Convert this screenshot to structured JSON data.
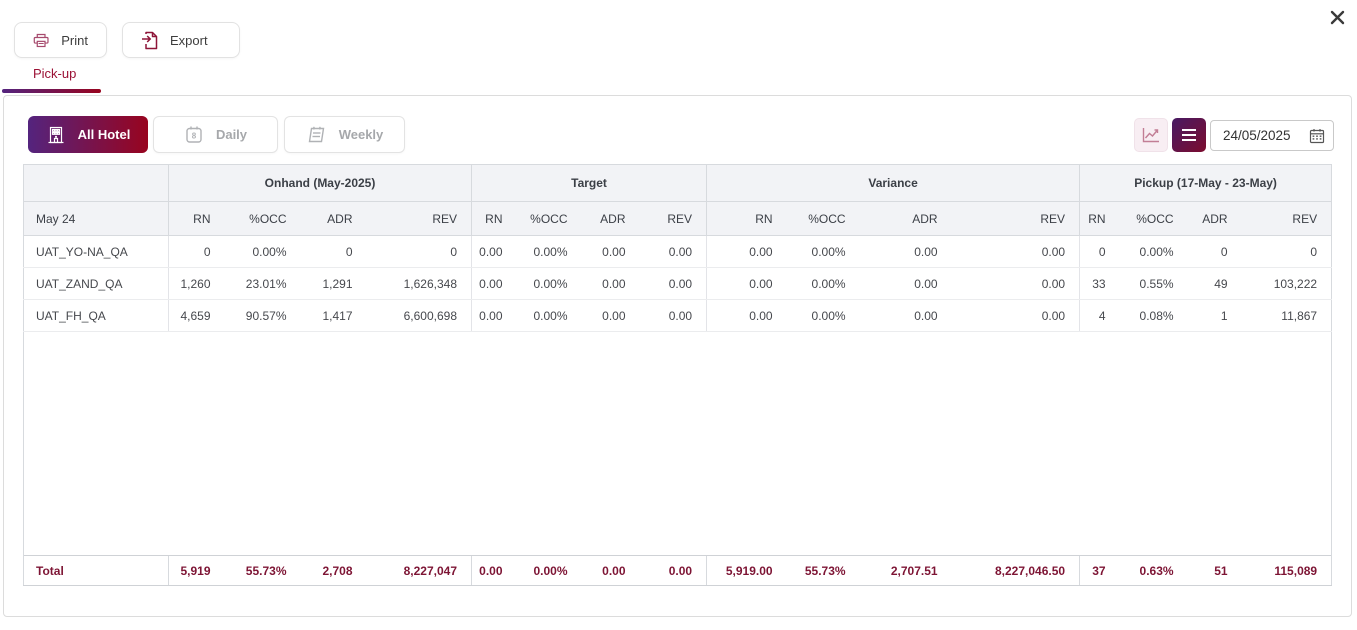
{
  "window": {
    "close_label": "close"
  },
  "header_actions": {
    "print": "Print",
    "export": "Export"
  },
  "tab": {
    "label": "Pick-up"
  },
  "controls": {
    "scope_buttons": [
      {
        "label": "All Hotel",
        "active": true
      },
      {
        "label": "Daily",
        "active": false
      },
      {
        "label": "Weekly",
        "active": false
      }
    ],
    "date": {
      "value": "24/05/2025"
    }
  },
  "table": {
    "first_column_label": "May 24",
    "groups": [
      {
        "label": "",
        "columns": []
      },
      {
        "label": "Onhand (May-2025)",
        "columns": [
          "RN",
          "%OCC",
          "ADR",
          "REV"
        ]
      },
      {
        "label": "Target",
        "columns": [
          "RN",
          "%OCC",
          "ADR",
          "REV"
        ]
      },
      {
        "label": "Variance",
        "columns": [
          "RN",
          "%OCC",
          "ADR",
          "REV"
        ]
      },
      {
        "label": "Pickup (17-May - 23-May)",
        "columns": [
          "RN",
          "%OCC",
          "ADR",
          "REV"
        ]
      }
    ],
    "rows": [
      {
        "name": "UAT_YO-NA_QA",
        "onhand": [
          "0",
          "0.00%",
          "0",
          "0"
        ],
        "target": [
          "0.00",
          "0.00%",
          "0.00",
          "0.00"
        ],
        "variance": [
          "0.00",
          "0.00%",
          "0.00",
          "0.00"
        ],
        "pickup": [
          "0",
          "0.00%",
          "0",
          "0"
        ]
      },
      {
        "name": "UAT_ZAND_QA",
        "onhand": [
          "1,260",
          "23.01%",
          "1,291",
          "1,626,348"
        ],
        "target": [
          "0.00",
          "0.00%",
          "0.00",
          "0.00"
        ],
        "variance": [
          "0.00",
          "0.00%",
          "0.00",
          "0.00"
        ],
        "pickup": [
          "33",
          "0.55%",
          "49",
          "103,222"
        ]
      },
      {
        "name": "UAT_FH_QA",
        "onhand": [
          "4,659",
          "90.57%",
          "1,417",
          "6,600,698"
        ],
        "target": [
          "0.00",
          "0.00%",
          "0.00",
          "0.00"
        ],
        "variance": [
          "0.00",
          "0.00%",
          "0.00",
          "0.00"
        ],
        "pickup": [
          "4",
          "0.08%",
          "1",
          "11,867"
        ]
      }
    ],
    "total": {
      "name": "Total",
      "onhand": [
        "5,919",
        "55.73%",
        "2,708",
        "8,227,047"
      ],
      "target": [
        "0.00",
        "0.00%",
        "0.00",
        "0.00"
      ],
      "variance": [
        "5,919.00",
        "55.73%",
        "2,707.51",
        "8,227,046.50"
      ],
      "pickup": [
        "37",
        "0.63%",
        "51",
        "115,089"
      ]
    }
  },
  "colors": {
    "accent_gradient_start": "#54247e",
    "accent_gradient_end": "#98041f",
    "total_text": "#7d1434",
    "tab_text": "#9b1135",
    "header_bg": "#f2f3f6",
    "border": "#d7dade"
  }
}
